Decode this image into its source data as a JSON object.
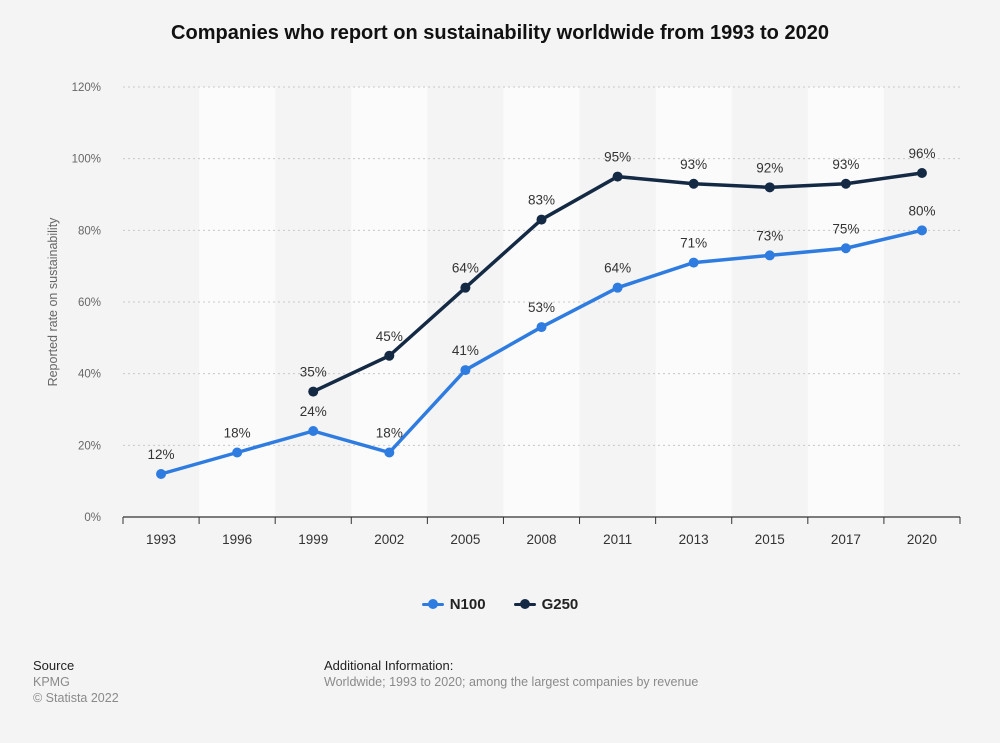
{
  "title": "Companies who report on sustainability worldwide from 1993 to 2020",
  "colors": {
    "n100": "#2f7ce0",
    "g250": "#142a44",
    "band": "#fbfbfb",
    "grid": "#c8c8c8",
    "axis": "#333333"
  },
  "chart_data": {
    "type": "line",
    "title": "Companies who report on sustainability worldwide from 1993 to 2020",
    "xlabel": "",
    "ylabel": "Reported rate on sustainability",
    "ylim": [
      0,
      120
    ],
    "yticks": [
      0,
      20,
      40,
      60,
      80,
      100,
      120
    ],
    "ytick_labels": [
      "0%",
      "20%",
      "40%",
      "60%",
      "80%",
      "100%",
      "120%"
    ],
    "grid": true,
    "legend_position": "bottom-center",
    "categories": [
      "1993",
      "1996",
      "1999",
      "2002",
      "2005",
      "2008",
      "2011",
      "2013",
      "2015",
      "2017",
      "2020"
    ],
    "series": [
      {
        "name": "N100",
        "values": [
          12,
          18,
          24,
          18,
          41,
          53,
          64,
          71,
          73,
          75,
          80
        ],
        "labels": [
          "12%",
          "18%",
          "24%",
          "18%",
          "41%",
          "53%",
          "64%",
          "71%",
          "73%",
          "75%",
          "80%"
        ]
      },
      {
        "name": "G250",
        "values": [
          null,
          null,
          35,
          45,
          64,
          83,
          95,
          93,
          92,
          93,
          96
        ],
        "labels": [
          null,
          null,
          "35%",
          "45%",
          "64%",
          "83%",
          "95%",
          "93%",
          "92%",
          "93%",
          "96%"
        ]
      }
    ]
  },
  "footer": {
    "source_heading": "Source",
    "source_name": "KPMG",
    "copyright": "© Statista 2022",
    "additional_heading": "Additional Information:",
    "additional_text": "Worldwide; 1993 to 2020; among the largest companies by revenue"
  }
}
